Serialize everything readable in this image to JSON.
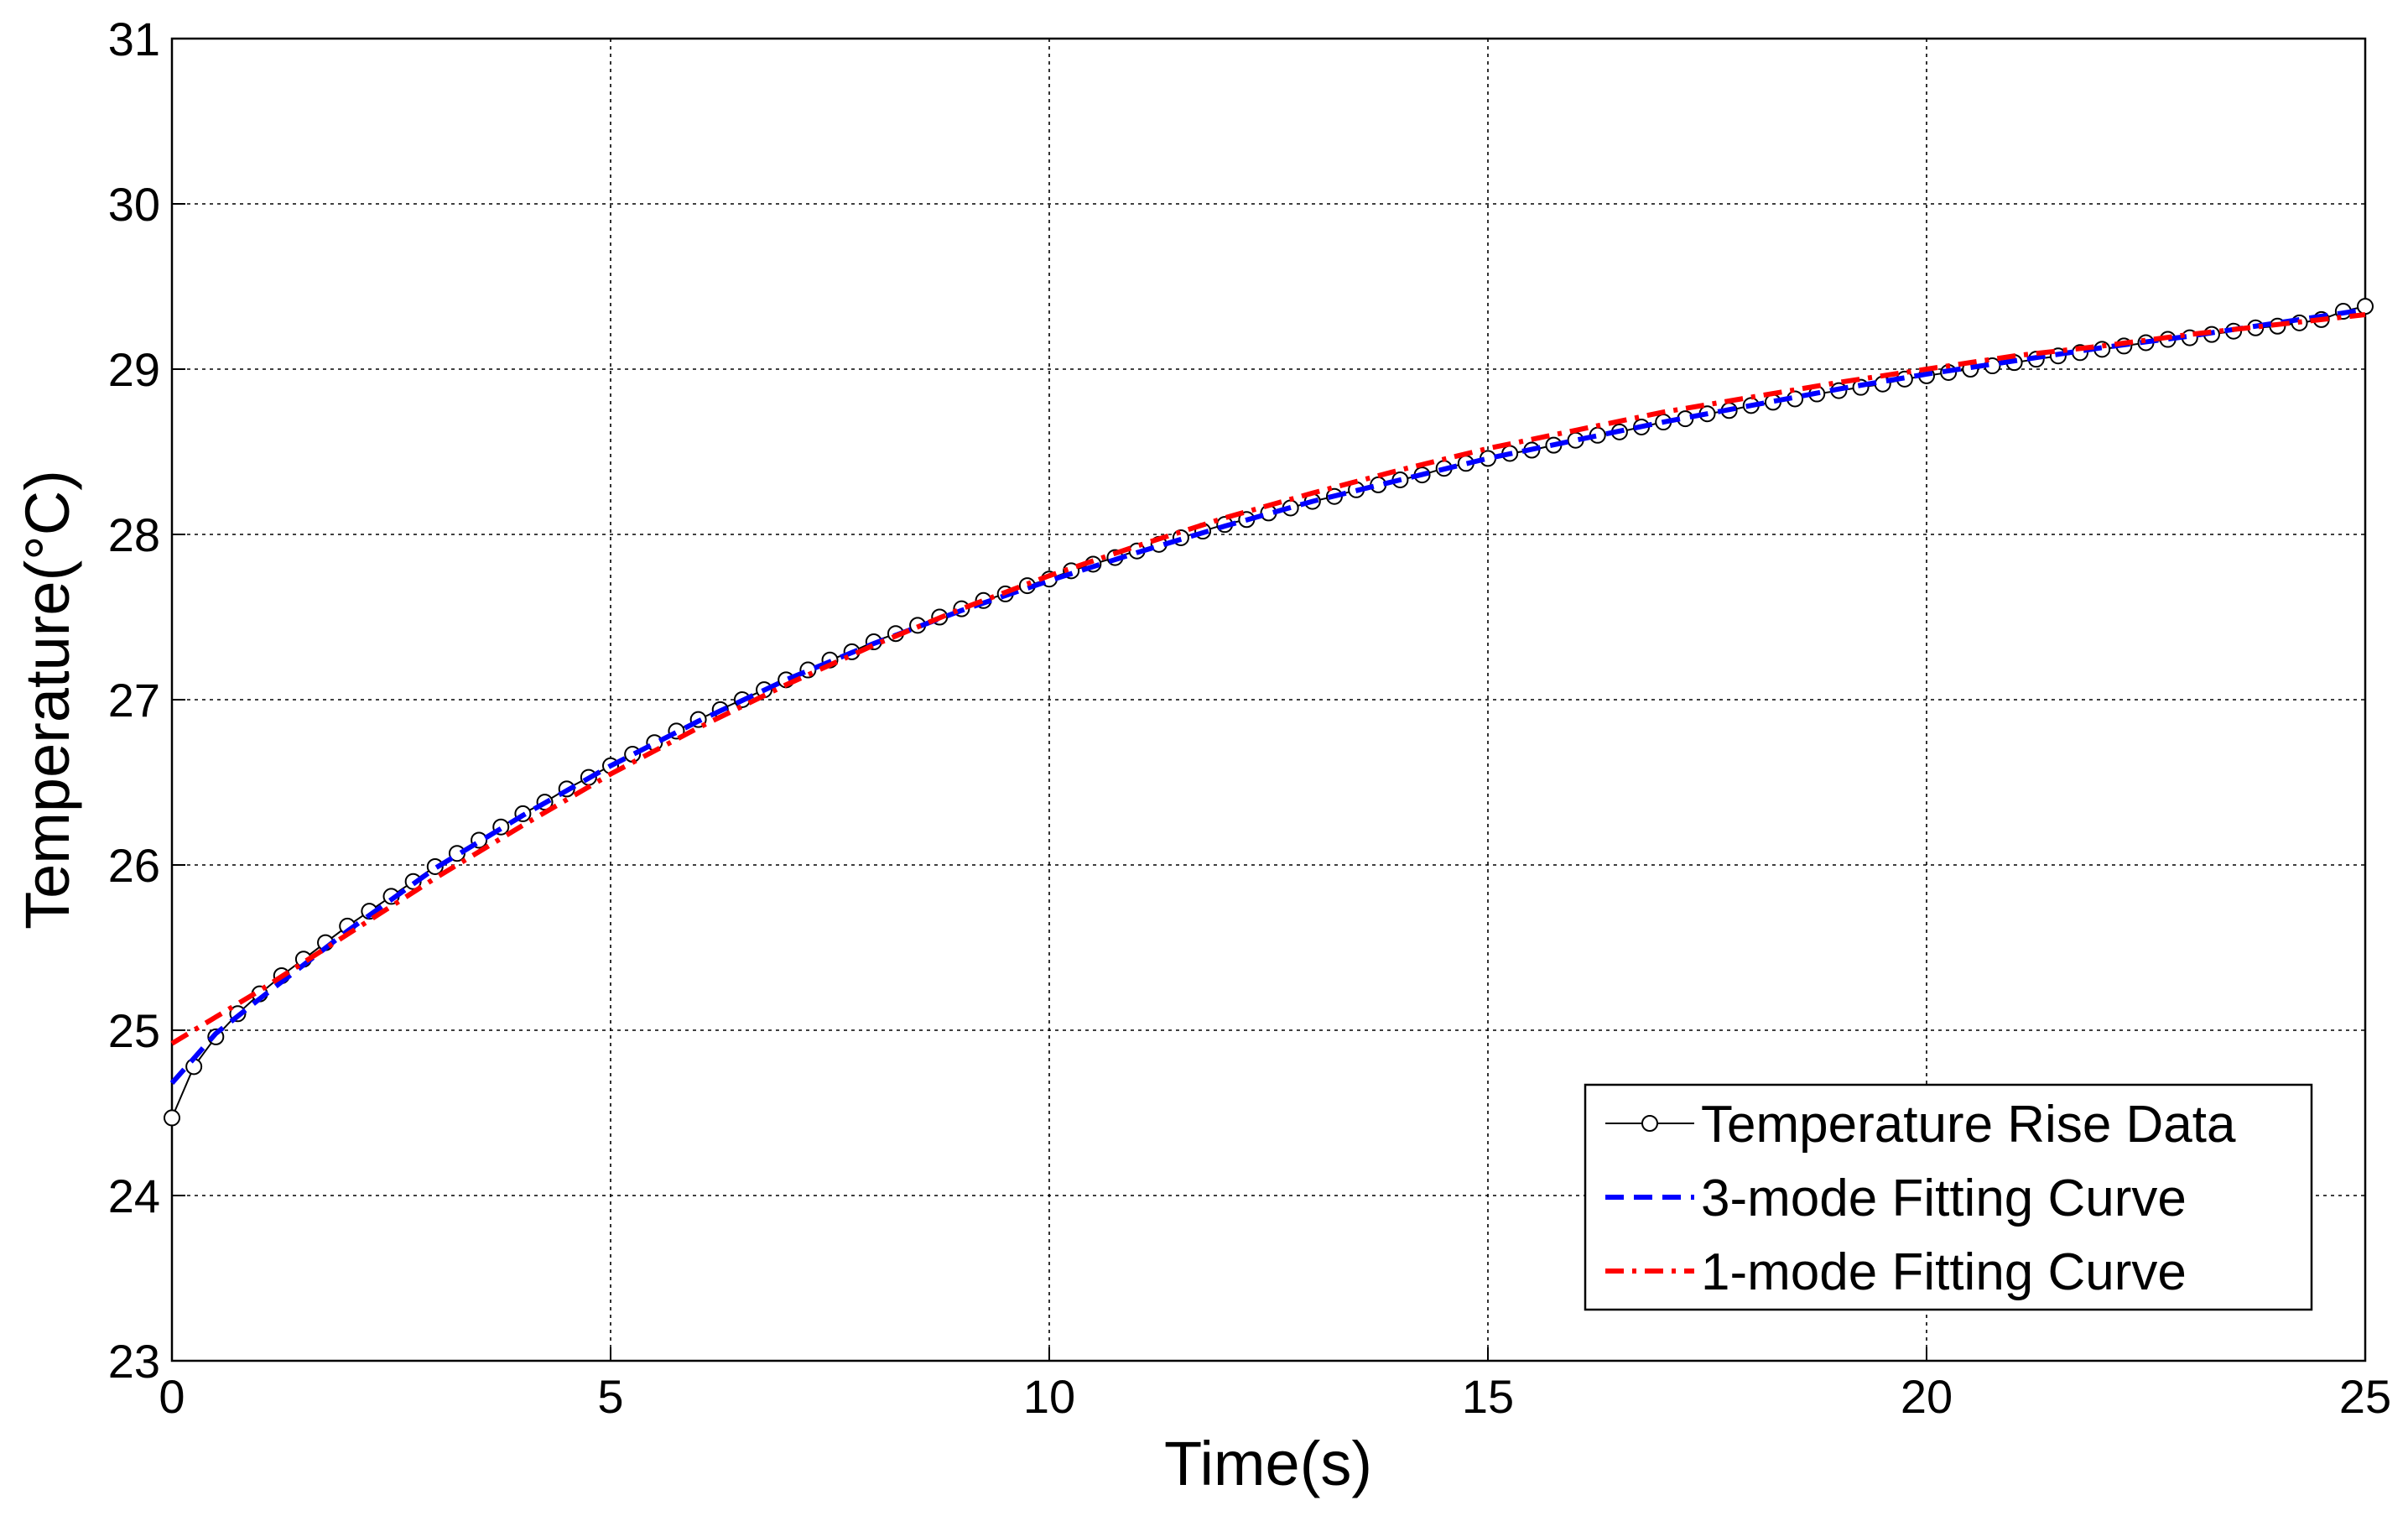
{
  "chart_data": {
    "type": "line",
    "xlabel": "Time(s)",
    "ylabel": "Temperature(°C)",
    "xlim": [
      0,
      25
    ],
    "xticks": [
      0,
      5,
      10,
      15,
      20,
      25
    ],
    "ylim": [
      23,
      31
    ],
    "yticks": [
      23,
      24,
      25,
      26,
      27,
      28,
      29,
      30,
      31
    ],
    "grid": true,
    "legend": "lower right",
    "series": [
      {
        "name": "Temperature Rise Data",
        "color": "#000000",
        "style": "marker",
        "x": [
          0,
          0.25,
          0.5,
          0.75,
          1,
          1.25,
          1.5,
          1.75,
          2,
          2.25,
          2.5,
          2.75,
          3,
          3.25,
          3.5,
          3.75,
          4,
          4.25,
          4.5,
          4.75,
          5,
          5.25,
          5.5,
          5.75,
          6,
          6.25,
          6.5,
          6.75,
          7,
          7.25,
          7.5,
          7.75,
          8,
          8.25,
          8.5,
          8.75,
          9,
          9.25,
          9.5,
          9.75,
          10,
          10.25,
          10.5,
          10.75,
          11,
          11.25,
          11.5,
          11.75,
          12,
          12.25,
          12.5,
          12.75,
          13,
          13.25,
          13.5,
          13.75,
          14,
          14.25,
          14.5,
          14.75,
          15,
          15.25,
          15.5,
          15.75,
          16,
          16.25,
          16.5,
          16.75,
          17,
          17.25,
          17.5,
          17.75,
          18,
          18.25,
          18.5,
          18.75,
          19,
          19.25,
          19.5,
          19.75,
          20,
          20.25,
          20.5,
          20.75,
          21,
          21.25,
          21.5,
          21.75,
          22,
          22.25,
          22.5,
          22.75,
          23,
          23.25,
          23.5,
          23.75,
          24,
          24.25,
          24.5,
          24.75,
          25
        ],
        "values": [
          24.47,
          24.78,
          24.96,
          25.1,
          25.22,
          25.33,
          25.43,
          25.53,
          25.63,
          25.72,
          25.81,
          25.9,
          25.99,
          26.07,
          26.15,
          26.23,
          26.31,
          26.38,
          26.46,
          26.53,
          26.6,
          26.67,
          26.74,
          26.81,
          26.88,
          26.94,
          27.0,
          27.06,
          27.12,
          27.18,
          27.24,
          27.29,
          27.35,
          27.4,
          27.45,
          27.5,
          27.55,
          27.6,
          27.64,
          27.69,
          27.73,
          27.78,
          27.82,
          27.86,
          27.9,
          27.94,
          27.98,
          28.02,
          28.06,
          28.09,
          28.13,
          28.16,
          28.2,
          28.23,
          28.27,
          28.3,
          28.33,
          28.36,
          28.4,
          28.43,
          28.46,
          28.49,
          28.51,
          28.54,
          28.57,
          28.6,
          28.62,
          28.65,
          28.68,
          28.7,
          28.73,
          28.75,
          28.78,
          28.8,
          28.82,
          28.85,
          28.87,
          28.89,
          28.91,
          28.94,
          28.96,
          28.98,
          29.0,
          29.02,
          29.04,
          29.06,
          29.08,
          29.1,
          29.12,
          29.14,
          29.16,
          29.18,
          29.19,
          29.21,
          29.23,
          29.25,
          29.26,
          29.28,
          29.3,
          29.35,
          29.38
        ]
      },
      {
        "name": "3-mode Fitting Curve",
        "color": "#0000ff",
        "style": "dashed",
        "x": [
          0,
          0.5,
          1,
          2,
          3,
          4,
          5,
          6,
          7,
          8,
          9,
          10,
          11,
          12,
          13,
          14,
          15,
          16,
          17,
          18,
          19,
          20,
          21,
          22,
          23,
          24,
          25
        ],
        "values": [
          24.68,
          24.98,
          25.19,
          25.6,
          25.98,
          26.3,
          26.6,
          26.87,
          27.12,
          27.34,
          27.54,
          27.72,
          27.89,
          28.05,
          28.2,
          28.33,
          28.46,
          28.57,
          28.68,
          28.78,
          28.88,
          28.97,
          29.05,
          29.13,
          29.2,
          29.28,
          29.36
        ]
      },
      {
        "name": "1-mode Fitting Curve",
        "color": "#ff0000",
        "style": "dashdot",
        "x": [
          0,
          0.5,
          1,
          2,
          3,
          4,
          5,
          6,
          7,
          8,
          9,
          10,
          11,
          12,
          13,
          14,
          15,
          16,
          17,
          18,
          19,
          20,
          21,
          22,
          23,
          24,
          25
        ],
        "values": [
          24.92,
          25.08,
          25.24,
          25.58,
          25.92,
          26.24,
          26.55,
          26.83,
          27.09,
          27.33,
          27.55,
          27.75,
          27.93,
          28.1,
          28.25,
          28.39,
          28.52,
          28.63,
          28.74,
          28.83,
          28.92,
          29.0,
          29.08,
          29.14,
          29.21,
          29.27,
          29.33
        ]
      }
    ]
  }
}
